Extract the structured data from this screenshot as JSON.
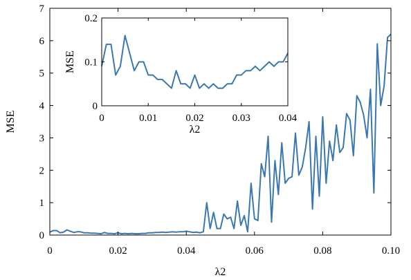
{
  "chart_data": [
    {
      "type": "line",
      "xlabel": "λ2",
      "ylabel": "MSE",
      "xlim": [
        0,
        0.1
      ],
      "ylim": [
        0,
        7
      ],
      "xticks": [
        0,
        0.02,
        0.04,
        0.06,
        0.08,
        0.1
      ],
      "xtick_labels": [
        "0",
        "0.02",
        "0.04",
        "0.06",
        "0.08",
        "0.10"
      ],
      "yticks": [
        0,
        1,
        2,
        3,
        4,
        5,
        6,
        7
      ],
      "ytick_labels": [
        "0",
        "1",
        "2",
        "3",
        "4",
        "5",
        "6",
        "7"
      ],
      "grid": false,
      "color": "#3a77b0",
      "series": [
        {
          "x": [
            0,
            0.001,
            0.002,
            0.003,
            0.004,
            0.005,
            0.006,
            0.007,
            0.008,
            0.009,
            0.01,
            0.011,
            0.012,
            0.013,
            0.014,
            0.015,
            0.016,
            0.017,
            0.018,
            0.019,
            0.02,
            0.021,
            0.022,
            0.023,
            0.024,
            0.025,
            0.026,
            0.027,
            0.028,
            0.029,
            0.03,
            0.031,
            0.032,
            0.033,
            0.034,
            0.035,
            0.036,
            0.037,
            0.038,
            0.039,
            0.04,
            0.041,
            0.042,
            0.043,
            0.044,
            0.045,
            0.046,
            0.047,
            0.048,
            0.049,
            0.05,
            0.051,
            0.052,
            0.053,
            0.054,
            0.055,
            0.056,
            0.057,
            0.058,
            0.059,
            0.06,
            0.061,
            0.062,
            0.063,
            0.064,
            0.065,
            0.066,
            0.067,
            0.068,
            0.069,
            0.07,
            0.071,
            0.072,
            0.073,
            0.074,
            0.075,
            0.076,
            0.077,
            0.078,
            0.079,
            0.08,
            0.081,
            0.082,
            0.083,
            0.084,
            0.085,
            0.086,
            0.087,
            0.088,
            0.089,
            0.09,
            0.091,
            0.092,
            0.093,
            0.094,
            0.095,
            0.096,
            0.097,
            0.098,
            0.099,
            0.1
          ],
          "y": [
            0.09,
            0.14,
            0.14,
            0.07,
            0.09,
            0.16,
            0.12,
            0.08,
            0.1,
            0.1,
            0.07,
            0.07,
            0.06,
            0.06,
            0.05,
            0.04,
            0.08,
            0.05,
            0.05,
            0.04,
            0.07,
            0.04,
            0.05,
            0.04,
            0.05,
            0.04,
            0.04,
            0.05,
            0.05,
            0.07,
            0.07,
            0.08,
            0.08,
            0.09,
            0.08,
            0.09,
            0.1,
            0.09,
            0.1,
            0.1,
            0.12,
            0.1,
            0.08,
            0.09,
            0.07,
            0.1,
            1.0,
            0.2,
            0.7,
            0.2,
            0.2,
            0.65,
            0.5,
            0.55,
            0.2,
            1.05,
            0.3,
            0.6,
            0.1,
            1.6,
            0.5,
            0.45,
            2.2,
            1.8,
            3.05,
            0.4,
            2.3,
            1.25,
            2.85,
            1.6,
            1.75,
            1.8,
            3.15,
            1.85,
            2.1,
            2.7,
            3.5,
            0.8,
            3.05,
            1.2,
            3.65,
            1.6,
            2.9,
            2.3,
            3.4,
            2.55,
            2.7,
            3.75,
            3.55,
            2.45,
            4.3,
            4.1,
            3.7,
            3.0,
            4.5,
            1.3,
            5.9,
            4.0,
            4.6,
            6.1,
            6.2
          ]
        }
      ]
    },
    {
      "type": "line",
      "xlabel": "λ2",
      "ylabel": "MSE",
      "xlim": [
        0,
        0.04
      ],
      "ylim": [
        0,
        0.2
      ],
      "xticks": [
        0,
        0.01,
        0.02,
        0.03,
        0.04
      ],
      "xtick_labels": [
        "0",
        "0.01",
        "0.02",
        "0.03",
        "0.04"
      ],
      "yticks": [
        0,
        0.1,
        0.2
      ],
      "ytick_labels": [
        "0",
        "0.1",
        "0.2"
      ],
      "grid": false,
      "color": "#3a77b0",
      "series": [
        {
          "x": [
            0,
            0.001,
            0.002,
            0.003,
            0.004,
            0.005,
            0.006,
            0.007,
            0.008,
            0.009,
            0.01,
            0.011,
            0.012,
            0.013,
            0.014,
            0.015,
            0.016,
            0.017,
            0.018,
            0.019,
            0.02,
            0.021,
            0.022,
            0.023,
            0.024,
            0.025,
            0.026,
            0.027,
            0.028,
            0.029,
            0.03,
            0.031,
            0.032,
            0.033,
            0.034,
            0.035,
            0.036,
            0.037,
            0.038,
            0.039,
            0.04
          ],
          "y": [
            0.09,
            0.14,
            0.14,
            0.07,
            0.09,
            0.16,
            0.12,
            0.08,
            0.1,
            0.1,
            0.07,
            0.07,
            0.06,
            0.06,
            0.05,
            0.04,
            0.08,
            0.05,
            0.05,
            0.04,
            0.07,
            0.04,
            0.05,
            0.04,
            0.05,
            0.04,
            0.04,
            0.05,
            0.05,
            0.07,
            0.07,
            0.08,
            0.08,
            0.09,
            0.08,
            0.09,
            0.1,
            0.09,
            0.1,
            0.1,
            0.12
          ]
        }
      ]
    }
  ]
}
